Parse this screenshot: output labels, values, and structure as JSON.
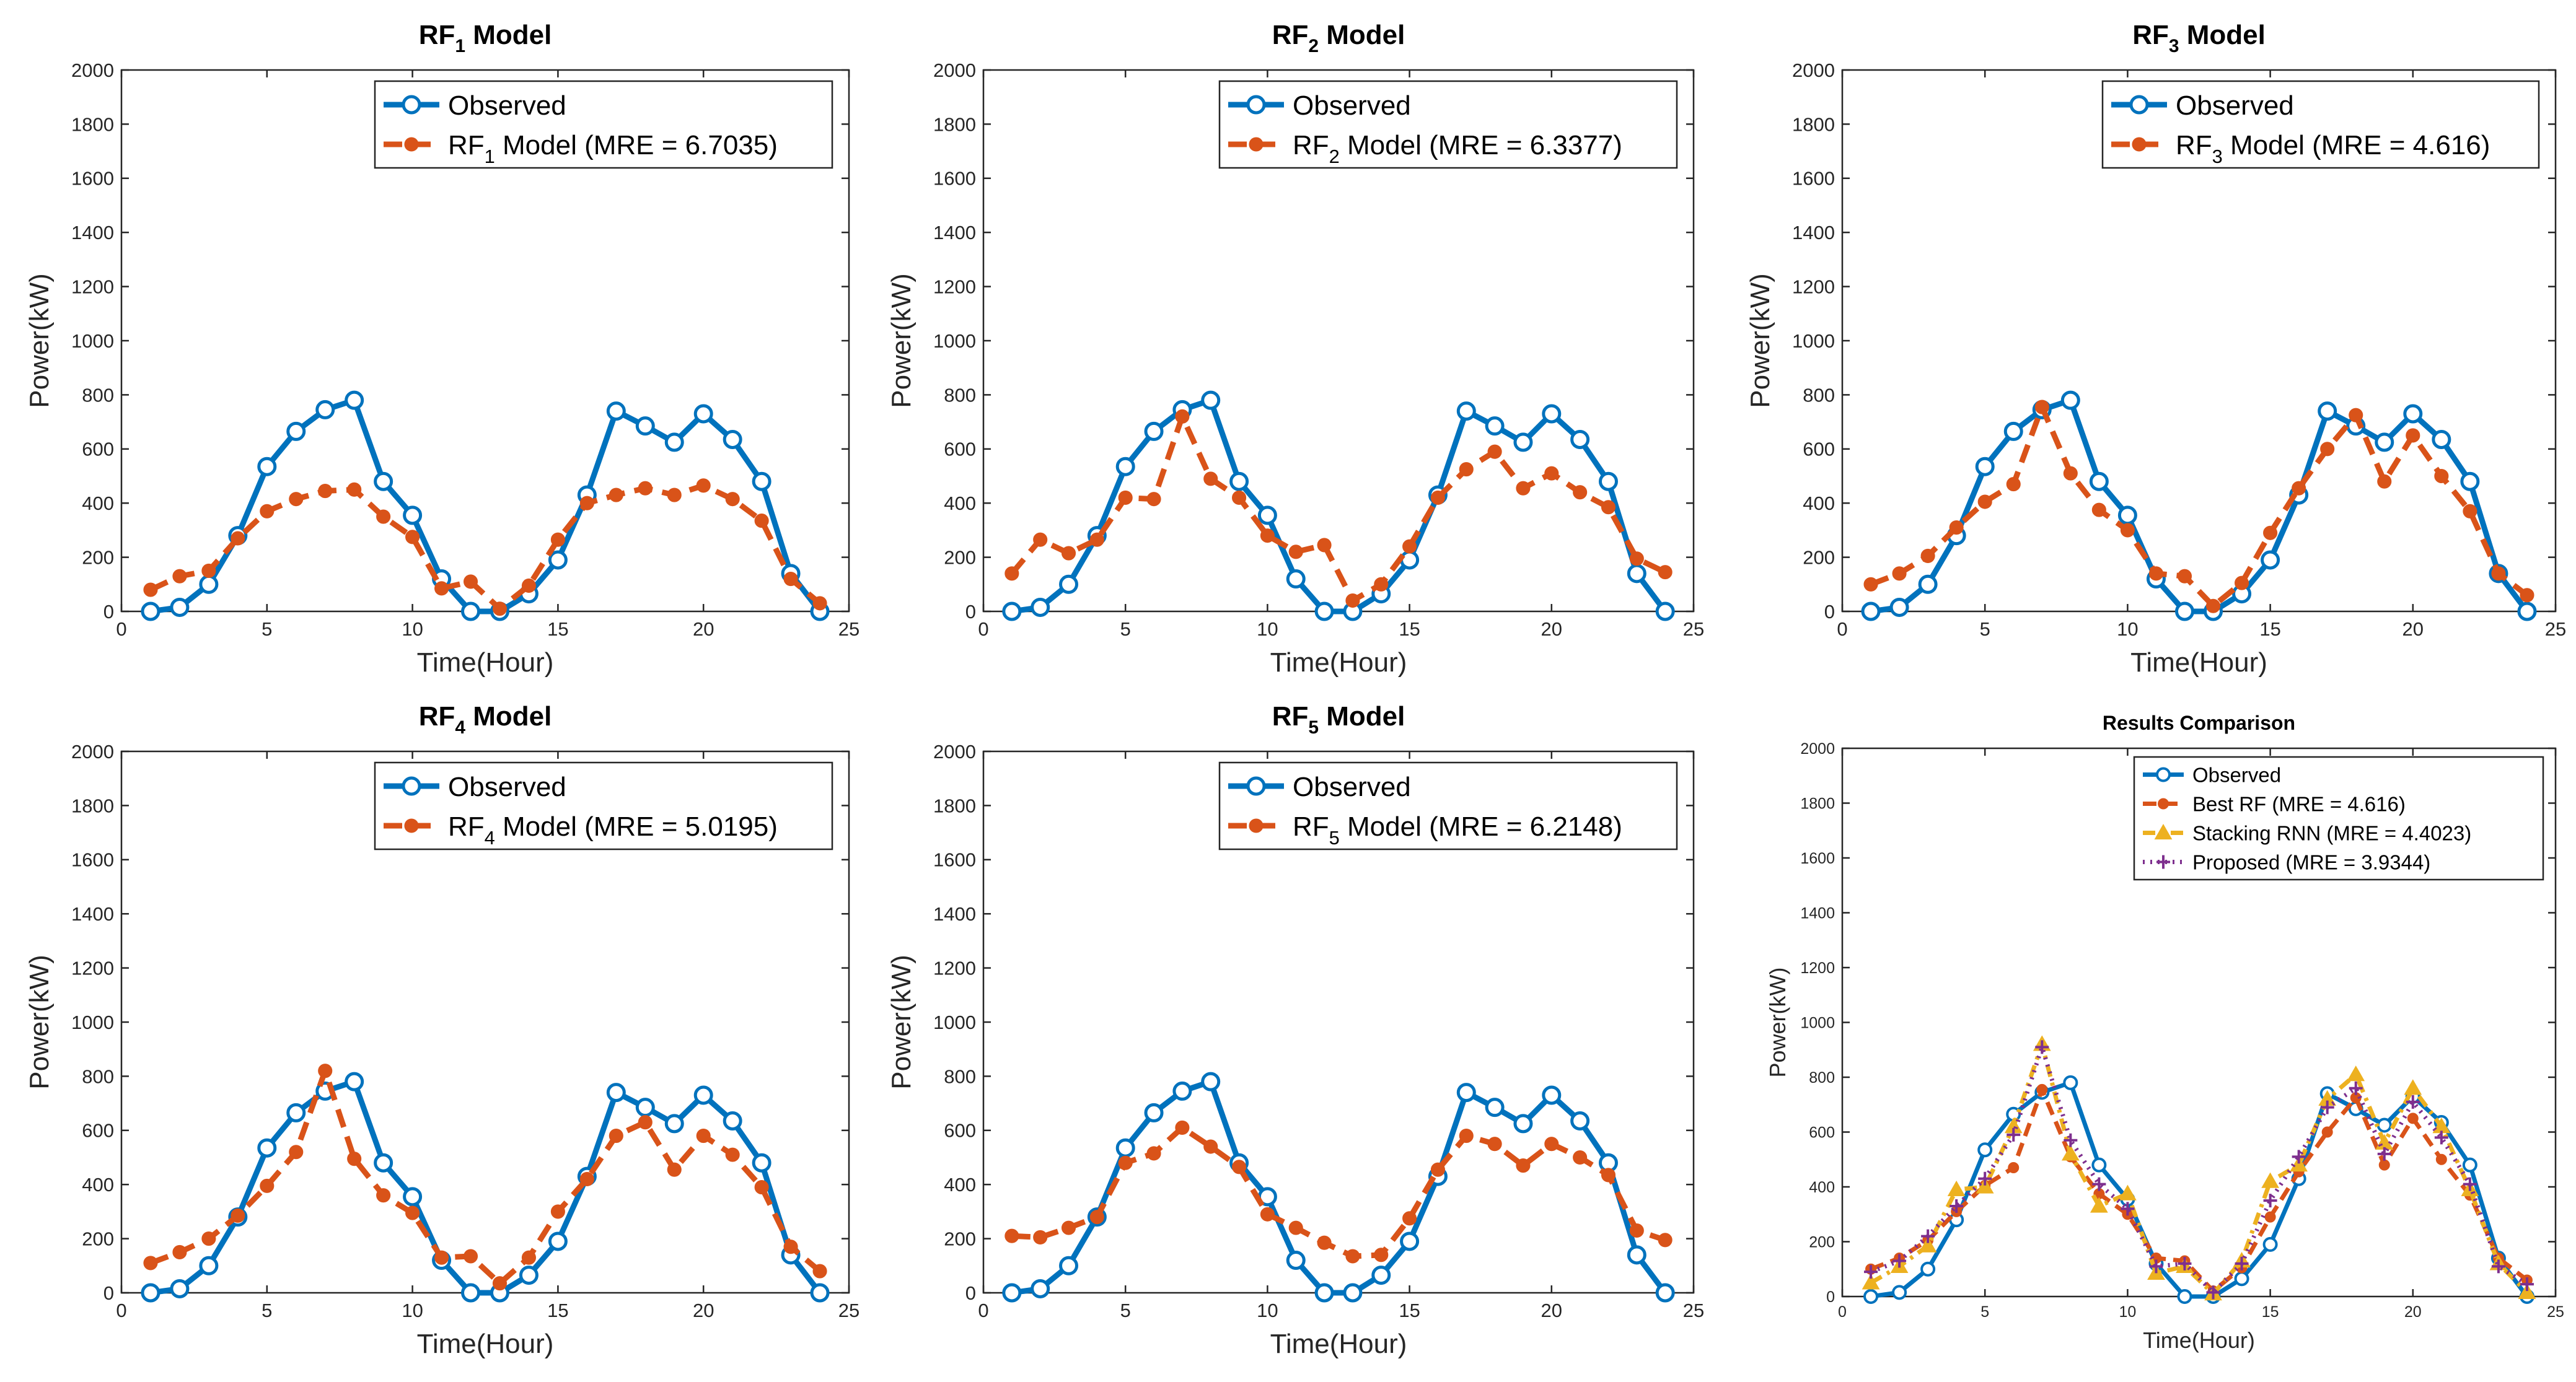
{
  "colors": {
    "observed": "#0072BD",
    "rf": "#D95319",
    "stacking": "#EDB120",
    "proposed": "#7E2F8E",
    "axis": "#262626"
  },
  "chart_data": [
    {
      "type": "line",
      "title_main": "RF",
      "title_sub": "1",
      "title_rest": " Model",
      "xlabel": "Time(Hour)",
      "ylabel": "Power(kW)",
      "xlim": [
        0,
        25
      ],
      "ylim": [
        0,
        2000
      ],
      "xticks": [
        0,
        5,
        10,
        15,
        20,
        25
      ],
      "yticks": [
        0,
        200,
        400,
        600,
        800,
        1000,
        1200,
        1400,
        1600,
        1800,
        2000
      ],
      "x": [
        1,
        2,
        3,
        4,
        5,
        6,
        7,
        8,
        9,
        10,
        11,
        12,
        13,
        14,
        15,
        16,
        17,
        18,
        19,
        20,
        21,
        22,
        23,
        24
      ],
      "series": [
        {
          "name": "Observed",
          "label_main": "Observed",
          "label_sub": "",
          "label_rest": "",
          "color_key": "observed",
          "style": "solid",
          "marker": "circle",
          "values": [
            0,
            15,
            100,
            280,
            535,
            665,
            745,
            780,
            480,
            355,
            120,
            0,
            0,
            65,
            190,
            430,
            740,
            685,
            625,
            730,
            635,
            480,
            140,
            0
          ]
        },
        {
          "name": "RF1 Model (MRE = 6.7035)",
          "label_main": "RF",
          "label_sub": "1",
          "label_rest": " Model (MRE = 6.7035)",
          "color_key": "rf",
          "style": "dashed",
          "marker": "dot",
          "values": [
            80,
            130,
            150,
            270,
            370,
            415,
            445,
            450,
            350,
            275,
            85,
            110,
            10,
            95,
            265,
            400,
            430,
            455,
            430,
            465,
            415,
            335,
            120,
            30
          ]
        }
      ]
    },
    {
      "type": "line",
      "title_main": "RF",
      "title_sub": "2",
      "title_rest": " Model",
      "xlabel": "Time(Hour)",
      "ylabel": "Power(kW)",
      "xlim": [
        0,
        25
      ],
      "ylim": [
        0,
        2000
      ],
      "xticks": [
        0,
        5,
        10,
        15,
        20,
        25
      ],
      "yticks": [
        0,
        200,
        400,
        600,
        800,
        1000,
        1200,
        1400,
        1600,
        1800,
        2000
      ],
      "x": [
        1,
        2,
        3,
        4,
        5,
        6,
        7,
        8,
        9,
        10,
        11,
        12,
        13,
        14,
        15,
        16,
        17,
        18,
        19,
        20,
        21,
        22,
        23,
        24
      ],
      "series": [
        {
          "name": "Observed",
          "label_main": "Observed",
          "label_sub": "",
          "label_rest": "",
          "color_key": "observed",
          "style": "solid",
          "marker": "circle",
          "values": [
            0,
            15,
            100,
            280,
            535,
            665,
            745,
            780,
            480,
            355,
            120,
            0,
            0,
            65,
            190,
            430,
            740,
            685,
            625,
            730,
            635,
            480,
            140,
            0
          ]
        },
        {
          "name": "RF2 Model (MRE = 6.3377)",
          "label_main": "RF",
          "label_sub": "2",
          "label_rest": " Model (MRE = 6.3377)",
          "color_key": "rf",
          "style": "dashed",
          "marker": "dot",
          "values": [
            140,
            265,
            215,
            265,
            420,
            415,
            720,
            490,
            420,
            280,
            220,
            245,
            40,
            100,
            240,
            420,
            525,
            590,
            455,
            510,
            440,
            385,
            195,
            145
          ]
        }
      ]
    },
    {
      "type": "line",
      "title_main": "RF",
      "title_sub": "3",
      "title_rest": " Model",
      "xlabel": "Time(Hour)",
      "ylabel": "Power(kW)",
      "xlim": [
        0,
        25
      ],
      "ylim": [
        0,
        2000
      ],
      "xticks": [
        0,
        5,
        10,
        15,
        20,
        25
      ],
      "yticks": [
        0,
        200,
        400,
        600,
        800,
        1000,
        1200,
        1400,
        1600,
        1800,
        2000
      ],
      "x": [
        1,
        2,
        3,
        4,
        5,
        6,
        7,
        8,
        9,
        10,
        11,
        12,
        13,
        14,
        15,
        16,
        17,
        18,
        19,
        20,
        21,
        22,
        23,
        24
      ],
      "series": [
        {
          "name": "Observed",
          "label_main": "Observed",
          "label_sub": "",
          "label_rest": "",
          "color_key": "observed",
          "style": "solid",
          "marker": "circle",
          "values": [
            0,
            15,
            100,
            280,
            535,
            665,
            745,
            780,
            480,
            355,
            120,
            0,
            0,
            65,
            190,
            430,
            740,
            685,
            625,
            730,
            635,
            480,
            140,
            0
          ]
        },
        {
          "name": "RF3 Model (MRE = 4.616)",
          "label_main": "RF",
          "label_sub": "3",
          "label_rest": " Model (MRE = 4.616)",
          "color_key": "rf",
          "style": "dashed",
          "marker": "dot",
          "values": [
            100,
            140,
            205,
            310,
            405,
            470,
            755,
            510,
            375,
            300,
            140,
            130,
            20,
            105,
            290,
            455,
            600,
            725,
            480,
            650,
            500,
            370,
            140,
            60
          ]
        }
      ]
    },
    {
      "type": "line",
      "title_main": "RF",
      "title_sub": "4",
      "title_rest": " Model",
      "xlabel": "Time(Hour)",
      "ylabel": "Power(kW)",
      "xlim": [
        0,
        25
      ],
      "ylim": [
        0,
        2000
      ],
      "xticks": [
        0,
        5,
        10,
        15,
        20,
        25
      ],
      "yticks": [
        0,
        200,
        400,
        600,
        800,
        1000,
        1200,
        1400,
        1600,
        1800,
        2000
      ],
      "x": [
        1,
        2,
        3,
        4,
        5,
        6,
        7,
        8,
        9,
        10,
        11,
        12,
        13,
        14,
        15,
        16,
        17,
        18,
        19,
        20,
        21,
        22,
        23,
        24
      ],
      "series": [
        {
          "name": "Observed",
          "label_main": "Observed",
          "label_sub": "",
          "label_rest": "",
          "color_key": "observed",
          "style": "solid",
          "marker": "circle",
          "values": [
            0,
            15,
            100,
            280,
            535,
            665,
            745,
            780,
            480,
            355,
            120,
            0,
            0,
            65,
            190,
            430,
            740,
            685,
            625,
            730,
            635,
            480,
            140,
            0
          ]
        },
        {
          "name": "RF4 Model (MRE = 5.0195)",
          "label_main": "RF",
          "label_sub": "4",
          "label_rest": " Model (MRE = 5.0195)",
          "color_key": "rf",
          "style": "dashed",
          "marker": "dot",
          "values": [
            110,
            150,
            200,
            285,
            395,
            520,
            820,
            495,
            360,
            295,
            130,
            135,
            35,
            130,
            300,
            420,
            580,
            630,
            455,
            580,
            510,
            390,
            170,
            80
          ]
        }
      ]
    },
    {
      "type": "line",
      "title_main": "RF",
      "title_sub": "5",
      "title_rest": " Model",
      "xlabel": "Time(Hour)",
      "ylabel": "Power(kW)",
      "xlim": [
        0,
        25
      ],
      "ylim": [
        0,
        2000
      ],
      "xticks": [
        0,
        5,
        10,
        15,
        20,
        25
      ],
      "yticks": [
        0,
        200,
        400,
        600,
        800,
        1000,
        1200,
        1400,
        1600,
        1800,
        2000
      ],
      "x": [
        1,
        2,
        3,
        4,
        5,
        6,
        7,
        8,
        9,
        10,
        11,
        12,
        13,
        14,
        15,
        16,
        17,
        18,
        19,
        20,
        21,
        22,
        23,
        24
      ],
      "series": [
        {
          "name": "Observed",
          "label_main": "Observed",
          "label_sub": "",
          "label_rest": "",
          "color_key": "observed",
          "style": "solid",
          "marker": "circle",
          "values": [
            0,
            15,
            100,
            280,
            535,
            665,
            745,
            780,
            480,
            355,
            120,
            0,
            0,
            65,
            190,
            430,
            740,
            685,
            625,
            730,
            635,
            480,
            140,
            0
          ]
        },
        {
          "name": "RF5 Model (MRE = 6.2148)",
          "label_main": "RF",
          "label_sub": "5",
          "label_rest": " Model (MRE = 6.2148)",
          "color_key": "rf",
          "style": "dashed",
          "marker": "dot",
          "values": [
            210,
            205,
            240,
            280,
            480,
            515,
            610,
            540,
            465,
            290,
            240,
            185,
            135,
            140,
            275,
            455,
            580,
            550,
            470,
            550,
            500,
            435,
            230,
            195
          ]
        }
      ]
    },
    {
      "type": "line",
      "title_main": "Results Comparison",
      "title_sub": "",
      "title_rest": "",
      "xlabel": "Time(Hour)",
      "ylabel": "Power(kW)",
      "xlim": [
        0,
        25
      ],
      "ylim": [
        0,
        2000
      ],
      "xticks": [
        0,
        5,
        10,
        15,
        20,
        25
      ],
      "yticks": [
        0,
        200,
        400,
        600,
        800,
        1000,
        1200,
        1400,
        1600,
        1800,
        2000
      ],
      "x": [
        1,
        2,
        3,
        4,
        5,
        6,
        7,
        8,
        9,
        10,
        11,
        12,
        13,
        14,
        15,
        16,
        17,
        18,
        19,
        20,
        21,
        22,
        23,
        24
      ],
      "series": [
        {
          "name": "Observed",
          "label_main": "Observed",
          "label_sub": "",
          "label_rest": "",
          "color_key": "observed",
          "style": "solid",
          "marker": "circle",
          "values": [
            0,
            15,
            100,
            280,
            535,
            665,
            745,
            780,
            480,
            355,
            120,
            0,
            0,
            65,
            190,
            430,
            740,
            685,
            625,
            730,
            635,
            480,
            140,
            0
          ]
        },
        {
          "name": "Best RF (MRE = 4.616)",
          "label_main": "Best RF (MRE = 4.616)",
          "label_sub": "",
          "label_rest": "",
          "color_key": "rf",
          "style": "dashed",
          "marker": "dot",
          "values": [
            100,
            140,
            205,
            310,
            405,
            470,
            755,
            510,
            375,
            300,
            140,
            130,
            20,
            105,
            290,
            455,
            600,
            725,
            480,
            650,
            500,
            370,
            140,
            60
          ]
        },
        {
          "name": "Stacking RNN (MRE = 4.4023)",
          "label_main": "Stacking RNN (MRE = 4.4023)",
          "label_sub": "",
          "label_rest": "",
          "color_key": "stacking",
          "style": "dashdot",
          "marker": "triangle",
          "values": [
            50,
            110,
            185,
            390,
            400,
            620,
            920,
            520,
            330,
            375,
            85,
            110,
            10,
            130,
            420,
            480,
            720,
            810,
            560,
            760,
            620,
            390,
            120,
            15
          ]
        },
        {
          "name": "Proposed (MRE = 3.9344)",
          "label_main": "Proposed (MRE = 3.9344)",
          "label_sub": "",
          "label_rest": "",
          "color_key": "proposed",
          "style": "dotted",
          "marker": "plus",
          "values": [
            90,
            130,
            220,
            330,
            430,
            590,
            910,
            570,
            410,
            320,
            110,
            120,
            15,
            120,
            350,
            510,
            690,
            760,
            520,
            710,
            580,
            410,
            110,
            45
          ]
        }
      ]
    }
  ]
}
